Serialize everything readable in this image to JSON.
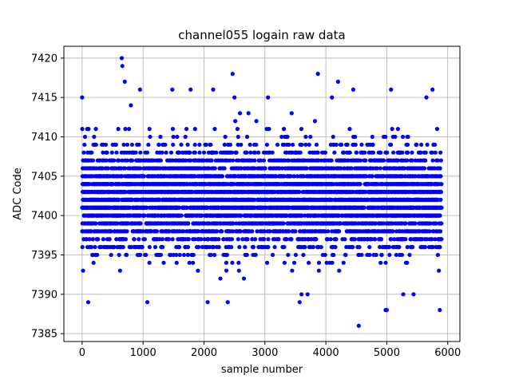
{
  "chart_data": {
    "type": "scatter",
    "title": "channel055 logain raw data",
    "xlabel": "sample number",
    "ylabel": "ADC Code",
    "xlim": [
      -300,
      6200
    ],
    "ylim": [
      7384,
      7421.5
    ],
    "xticks": [
      0,
      1000,
      2000,
      3000,
      4000,
      5000,
      6000
    ],
    "yticks": [
      7385,
      7390,
      7395,
      7400,
      7405,
      7410,
      7415,
      7420
    ],
    "grid": true,
    "marker_color": "#0000ff",
    "series": [
      {
        "x_range": [
          0,
          5900
        ],
        "n_samples": 5900,
        "y_level_range": [
          7386,
          7420
        ],
        "x": [
          0,
          15,
          100,
          650,
          660,
          700,
          1070,
          3870,
          4200,
          4540,
          5000,
          5870,
          2470,
          2500,
          2060,
          2390,
          3570,
          3600,
          3700,
          5270,
          5440,
          5650,
          4980,
          950,
          800,
          1480,
          1780,
          2150,
          2730,
          3050,
          4100,
          4450,
          5070,
          5750
        ],
        "y": [
          7415,
          7393,
          7389,
          7420,
          7419,
          7417,
          7389,
          7418,
          7417,
          7386,
          7388,
          7388,
          7418,
          7415,
          7389,
          7389,
          7389,
          7390,
          7390,
          7390,
          7390,
          7415,
          7388,
          7416,
          7414,
          7416,
          7416,
          7416,
          7413,
          7415,
          7415,
          7416,
          7416,
          7416
        ]
      }
    ]
  }
}
